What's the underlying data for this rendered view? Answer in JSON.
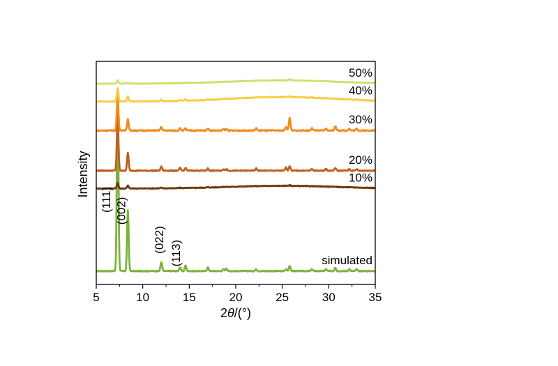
{
  "chart_data": {
    "type": "line",
    "title": "",
    "xlabel_prefix": "2",
    "xlabel_theta": "θ",
    "xlabel_suffix": "/(°)",
    "ylabel": "Intensity",
    "xlim": [
      5,
      35
    ],
    "x_ticks": [
      5,
      10,
      15,
      20,
      25,
      30,
      35
    ],
    "x_tick_labels": [
      "5",
      "10",
      "15",
      "20",
      "25",
      "30",
      "35"
    ],
    "y_ticks_shown": false,
    "grid": false,
    "legend": "inline labels at right end of each trace",
    "peaks_2theta": [
      7.3,
      8.4,
      12.0,
      14.0,
      14.6,
      17.0,
      18.7,
      19.0,
      22.2,
      25.4,
      25.8,
      28.2,
      29.7,
      30.7,
      32.2,
      33.0
    ],
    "series": [
      {
        "name": "simulated",
        "color": "#7db33b",
        "baseline_frac": 0.06,
        "amplitude_frac": 0.82,
        "noise": 0.004,
        "peak_heights": [
          1.0,
          0.33,
          0.05,
          0.02,
          0.03,
          0.02,
          0.01,
          0.015,
          0.01,
          0.01,
          0.03,
          0.01,
          0.01,
          0.02,
          0.01,
          0.01
        ],
        "hump": 0.0
      },
      {
        "name": "10%",
        "color": "#6b3a12",
        "baseline_frac": 0.43,
        "amplitude_frac": 0.025,
        "noise": 0.003,
        "peak_heights": [
          1.0,
          0.5,
          0.1,
          0.05,
          0.05,
          0.05,
          0.03,
          0.03,
          0.03,
          0.05,
          0.1,
          0.03,
          0.03,
          0.05,
          0.03,
          0.03
        ],
        "hump": 0.012
      },
      {
        "name": "20%",
        "color": "#c0601c",
        "baseline_frac": 0.51,
        "amplitude_frac": 0.24,
        "noise": 0.004,
        "peak_heights": [
          1.0,
          0.33,
          0.08,
          0.05,
          0.05,
          0.04,
          0.03,
          0.03,
          0.04,
          0.06,
          0.09,
          0.03,
          0.03,
          0.05,
          0.03,
          0.03
        ],
        "hump": 0.0
      },
      {
        "name": "30%",
        "color": "#f28a1e",
        "baseline_frac": 0.69,
        "amplitude_frac": 0.16,
        "noise": 0.004,
        "peak_heights": [
          1.0,
          0.32,
          0.1,
          0.06,
          0.06,
          0.06,
          0.04,
          0.04,
          0.06,
          0.1,
          0.35,
          0.06,
          0.06,
          0.12,
          0.05,
          0.05
        ],
        "hump": 0.0
      },
      {
        "name": "40%",
        "color": "#f7cd45",
        "baseline_frac": 0.82,
        "amplitude_frac": 0.06,
        "noise": 0.003,
        "peak_heights": [
          1.0,
          0.4,
          0.1,
          0.05,
          0.12,
          0.05,
          0.03,
          0.03,
          0.03,
          0.05,
          0.08,
          0.03,
          0.03,
          0.03,
          0.03,
          0.03
        ],
        "hump": 0.02
      },
      {
        "name": "50%",
        "color": "#cfe06a",
        "baseline_frac": 0.9,
        "amplitude_frac": 0.015,
        "noise": 0.002,
        "peak_heights": [
          1.0,
          0.3,
          0.05,
          0.03,
          0.1,
          0.03,
          0.02,
          0.02,
          0.02,
          0.05,
          0.4,
          0.02,
          0.02,
          0.02,
          0.02,
          0.02
        ],
        "hump": 0.015
      }
    ],
    "peak_labels": [
      {
        "text": "(111)",
        "two_theta": 6.5,
        "level_frac": 0.38
      },
      {
        "text": "(002)",
        "two_theta": 8.1,
        "level_frac": 0.33
      },
      {
        "text": "(022)",
        "two_theta": 12.2,
        "level_frac": 0.2
      },
      {
        "text": "(113)",
        "two_theta": 14.0,
        "level_frac": 0.14
      }
    ]
  }
}
